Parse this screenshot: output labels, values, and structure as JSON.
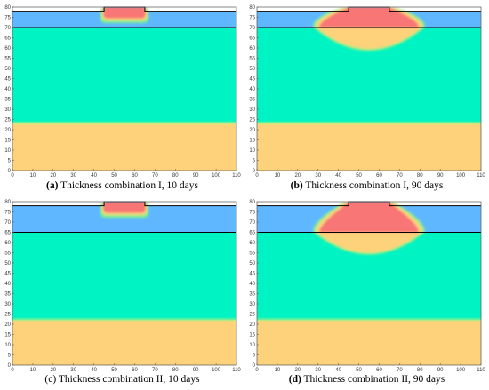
{
  "figure": {
    "panels": [
      {
        "id": "a",
        "label": "(a)",
        "label_bold": true,
        "caption": " Thickness combination I, 10 days"
      },
      {
        "id": "b",
        "label": "(b)",
        "label_bold": true,
        "caption": " Thickness combination I, 90 days"
      },
      {
        "id": "c",
        "label": "(c)",
        "label_bold": false,
        "caption": " Thickness combination II, 10 days"
      },
      {
        "id": "d",
        "label": "(d)",
        "label_bold": true,
        "caption": " Thickness combination II, 90 days"
      }
    ]
  },
  "colors": {
    "top_layer": "#5fb8ff",
    "middle_layer": "#00f3c2",
    "bottom_layer": "#fdd27a",
    "hot_zone": "#f87676",
    "warm_zone": "#fdd27a",
    "frame": "#000000"
  },
  "chart_data": [
    {
      "type": "heatmap",
      "panel": "a",
      "xlim": [
        0,
        110
      ],
      "ylim": [
        0,
        80
      ],
      "xticks": [
        0,
        10,
        20,
        30,
        40,
        50,
        60,
        70,
        80,
        90,
        100,
        110
      ],
      "yticks": [
        0,
        5,
        10,
        15,
        20,
        25,
        30,
        35,
        40,
        45,
        50,
        55,
        60,
        65,
        70,
        75,
        80
      ],
      "layers": {
        "bottom_top": 23,
        "interface": 70,
        "surface": 78
      },
      "embankment": {
        "x_start": 45,
        "x_end": 65,
        "top": 80
      },
      "zones": {
        "hot_bottom": 74.5,
        "warm_bottom": 73.5,
        "spread": 1
      }
    },
    {
      "type": "heatmap",
      "panel": "b",
      "xlim": [
        0,
        110
      ],
      "ylim": [
        0,
        80
      ],
      "xticks": [
        0,
        10,
        20,
        30,
        40,
        50,
        60,
        70,
        80,
        90,
        100,
        110
      ],
      "yticks": [
        0,
        5,
        10,
        15,
        20,
        25,
        30,
        35,
        40,
        45,
        50,
        55,
        60,
        65,
        70,
        75,
        80
      ],
      "layers": {
        "bottom_top": 23,
        "interface": 70,
        "surface": 78
      },
      "embankment": {
        "x_start": 45,
        "x_end": 65,
        "top": 80
      },
      "zones": {
        "hot_bottom": 70,
        "warm_bottom": 56.5,
        "spread": 15
      }
    },
    {
      "type": "heatmap",
      "panel": "c",
      "xlim": [
        0,
        110
      ],
      "ylim": [
        0,
        80
      ],
      "xticks": [
        0,
        10,
        20,
        30,
        40,
        50,
        60,
        70,
        80,
        90,
        100,
        110
      ],
      "yticks": [
        0,
        5,
        10,
        15,
        20,
        25,
        30,
        35,
        40,
        45,
        50,
        55,
        60,
        65,
        70,
        75,
        80
      ],
      "layers": {
        "bottom_top": 22,
        "interface": 65,
        "surface": 78
      },
      "embankment": {
        "x_start": 45,
        "x_end": 65,
        "top": 80
      },
      "zones": {
        "hot_bottom": 74.5,
        "warm_bottom": 73.5,
        "spread": 1
      }
    },
    {
      "type": "heatmap",
      "panel": "d",
      "xlim": [
        0,
        110
      ],
      "ylim": [
        0,
        80
      ],
      "xticks": [
        0,
        10,
        20,
        30,
        40,
        50,
        60,
        70,
        80,
        90,
        100,
        110
      ],
      "yticks": [
        0,
        5,
        10,
        15,
        20,
        25,
        30,
        35,
        40,
        45,
        50,
        55,
        60,
        65,
        70,
        75,
        80
      ],
      "layers": {
        "bottom_top": 22,
        "interface": 65,
        "surface": 78
      },
      "embankment": {
        "x_start": 45,
        "x_end": 65,
        "top": 80
      },
      "zones": {
        "hot_bottom": 65,
        "warm_bottom": 52,
        "spread": 15
      }
    }
  ]
}
